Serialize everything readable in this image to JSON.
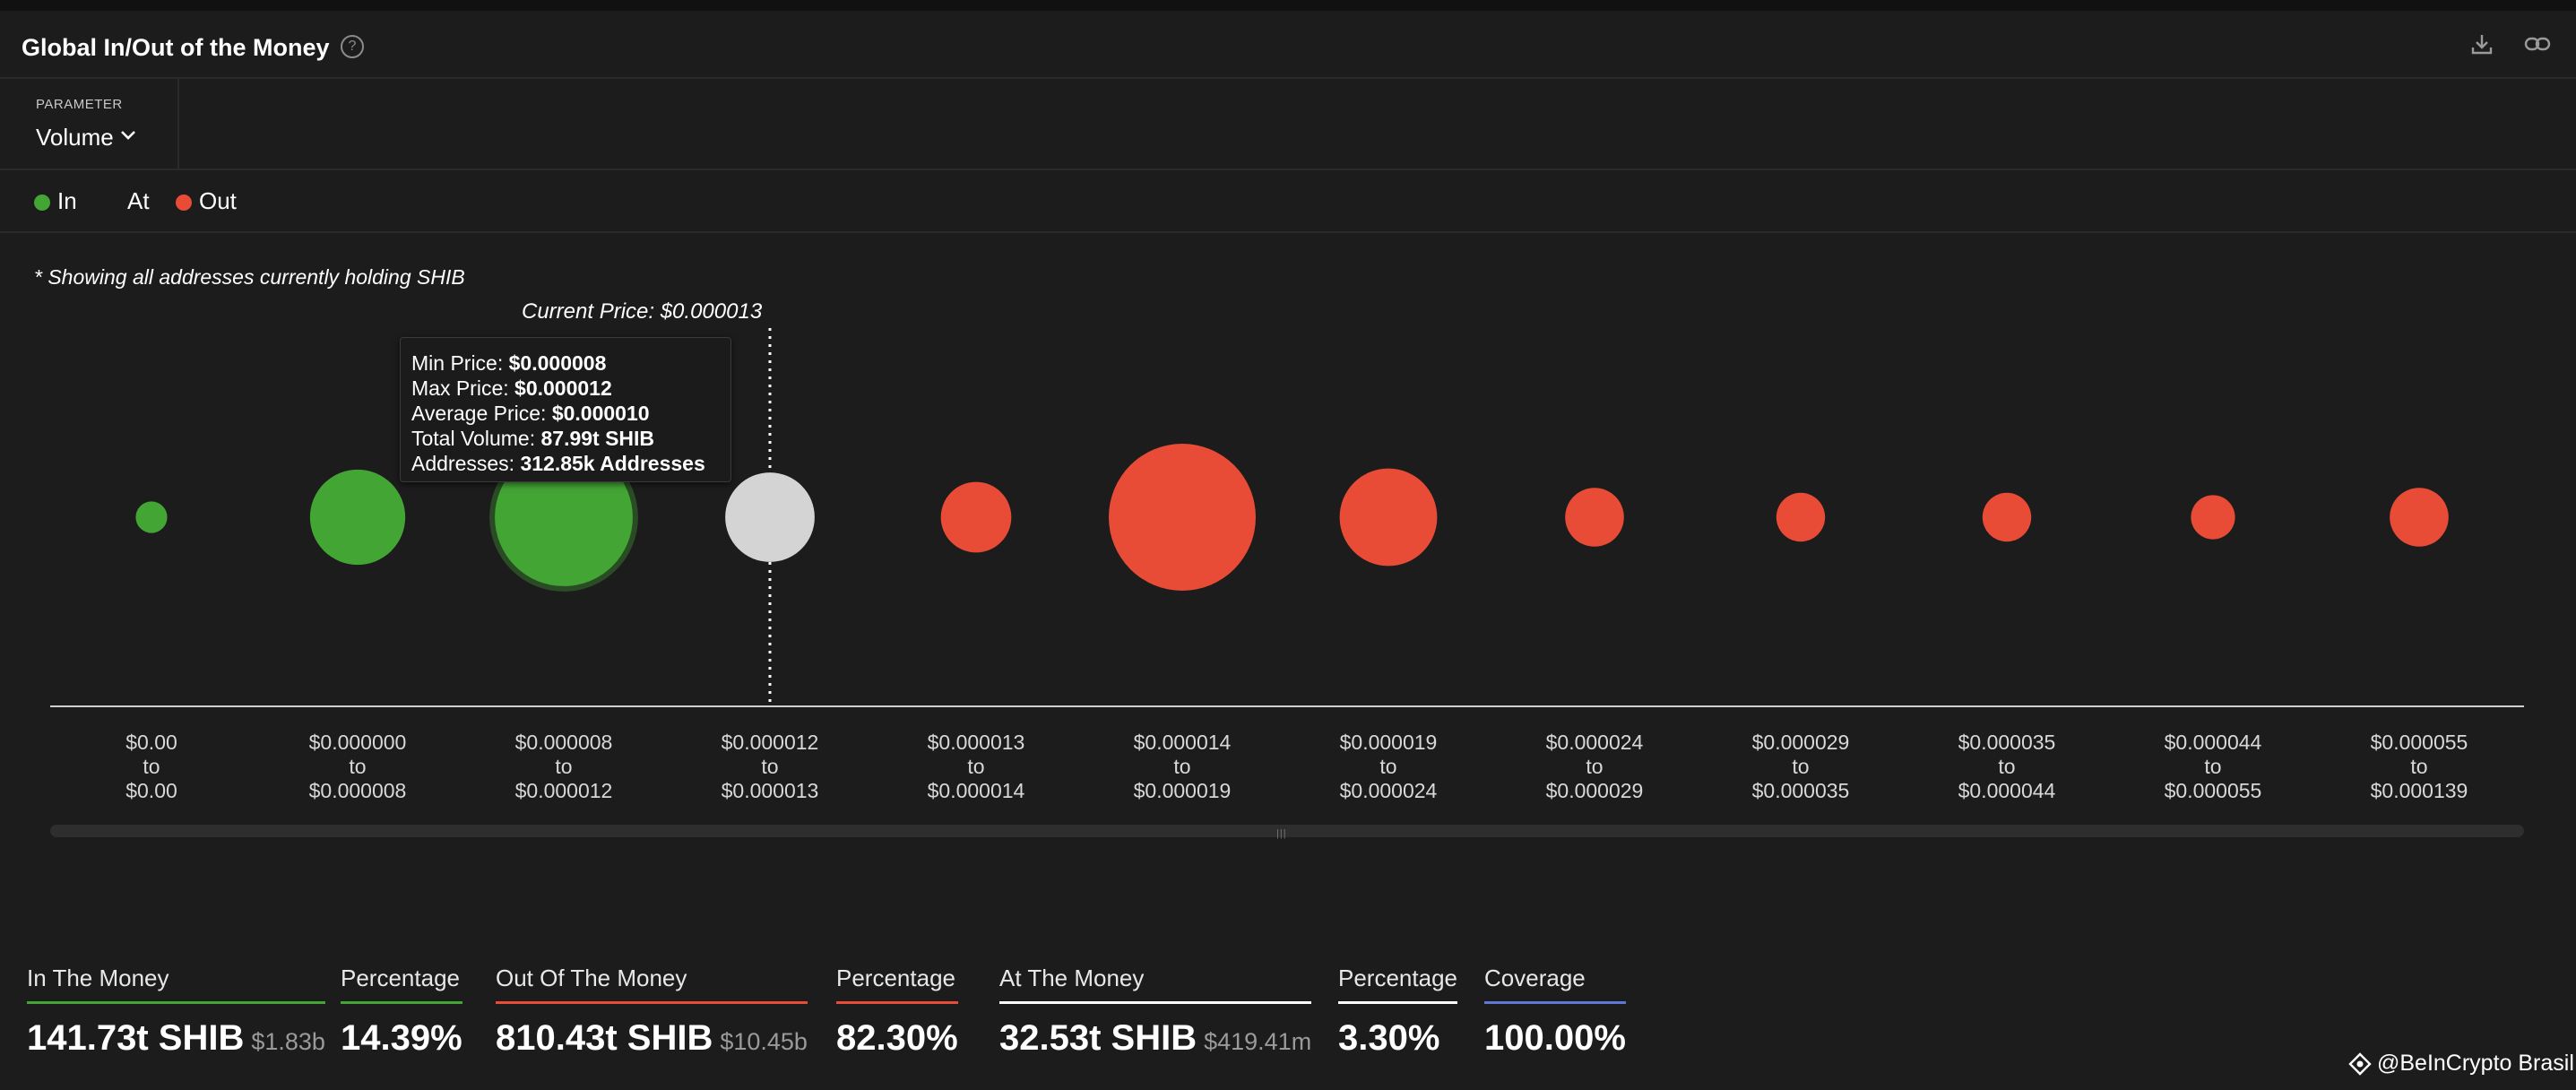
{
  "header": {
    "title": "Global In/Out of the Money",
    "help_icon": "?",
    "icons": [
      "download-icon",
      "link-icon"
    ]
  },
  "parameter": {
    "label": "PARAMETER",
    "value": "Volume"
  },
  "legend": [
    {
      "label": "In",
      "color": "#43a534"
    },
    {
      "label": "At",
      "color": ""
    },
    {
      "label": "Out",
      "color": "#e84c37"
    }
  ],
  "note": "* Showing all addresses currently holding SHIB",
  "current_price": "Current Price: $0.000013",
  "colors": {
    "in": "#43a534",
    "at": "#d4d4d4",
    "out": "#e84c37",
    "coverage": "#5f78d8"
  },
  "chart_data": {
    "type": "scatter",
    "subtype": "bubble",
    "categories": [
      {
        "from": "$0.00",
        "to": "$0.00"
      },
      {
        "from": "$0.000000",
        "to": "$0.000008"
      },
      {
        "from": "$0.000008",
        "to": "$0.000012"
      },
      {
        "from": "$0.000012",
        "to": "$0.000013"
      },
      {
        "from": "$0.000013",
        "to": "$0.000014"
      },
      {
        "from": "$0.000014",
        "to": "$0.000019"
      },
      {
        "from": "$0.000019",
        "to": "$0.000024"
      },
      {
        "from": "$0.000024",
        "to": "$0.000029"
      },
      {
        "from": "$0.000029",
        "to": "$0.000035"
      },
      {
        "from": "$0.000035",
        "to": "$0.000044"
      },
      {
        "from": "$0.000044",
        "to": "$0.000055"
      },
      {
        "from": "$0.000055",
        "to": "$0.000139"
      }
    ],
    "connector": "to",
    "status": [
      "in",
      "in",
      "in",
      "at",
      "out",
      "out",
      "out",
      "out",
      "out",
      "out",
      "out",
      "out"
    ],
    "relative_volume": [
      0.046,
      0.42,
      0.88,
      0.37,
      0.23,
      1.0,
      0.44,
      0.16,
      0.11,
      0.11,
      0.09,
      0.16
    ],
    "highlight_index": 2,
    "current_price_position": 3,
    "grid": false
  },
  "tooltip": {
    "rows": [
      {
        "label": "Min Price:",
        "value": "$0.000008"
      },
      {
        "label": "Max Price:",
        "value": "$0.000012"
      },
      {
        "label": "Average Price:",
        "value": "$0.000010"
      },
      {
        "label": "Total Volume:",
        "value": "87.99t SHIB"
      },
      {
        "label": "Addresses:",
        "value": "312.85k Addresses"
      }
    ]
  },
  "stats": [
    {
      "label": "In The Money",
      "value": "141.73t SHIB",
      "sub": "$1.83b",
      "color": "#43a534"
    },
    {
      "label": "Percentage",
      "value": "14.39%",
      "sub": "",
      "color": "#43a534"
    },
    {
      "label": "Out Of The Money",
      "value": "810.43t SHIB",
      "sub": "$10.45b",
      "color": "#e84c37"
    },
    {
      "label": "Percentage",
      "value": "82.30%",
      "sub": "",
      "color": "#e84c37"
    },
    {
      "label": "At The Money",
      "value": "32.53t SHIB",
      "sub": "$419.41m",
      "color": "#ffffff"
    },
    {
      "label": "Percentage",
      "value": "3.30%",
      "sub": "",
      "color": "#ffffff"
    },
    {
      "label": "Coverage",
      "value": "100.00%",
      "sub": "",
      "color": "#5f78d8"
    }
  ],
  "watermark": "@BeInCrypto Brasil"
}
